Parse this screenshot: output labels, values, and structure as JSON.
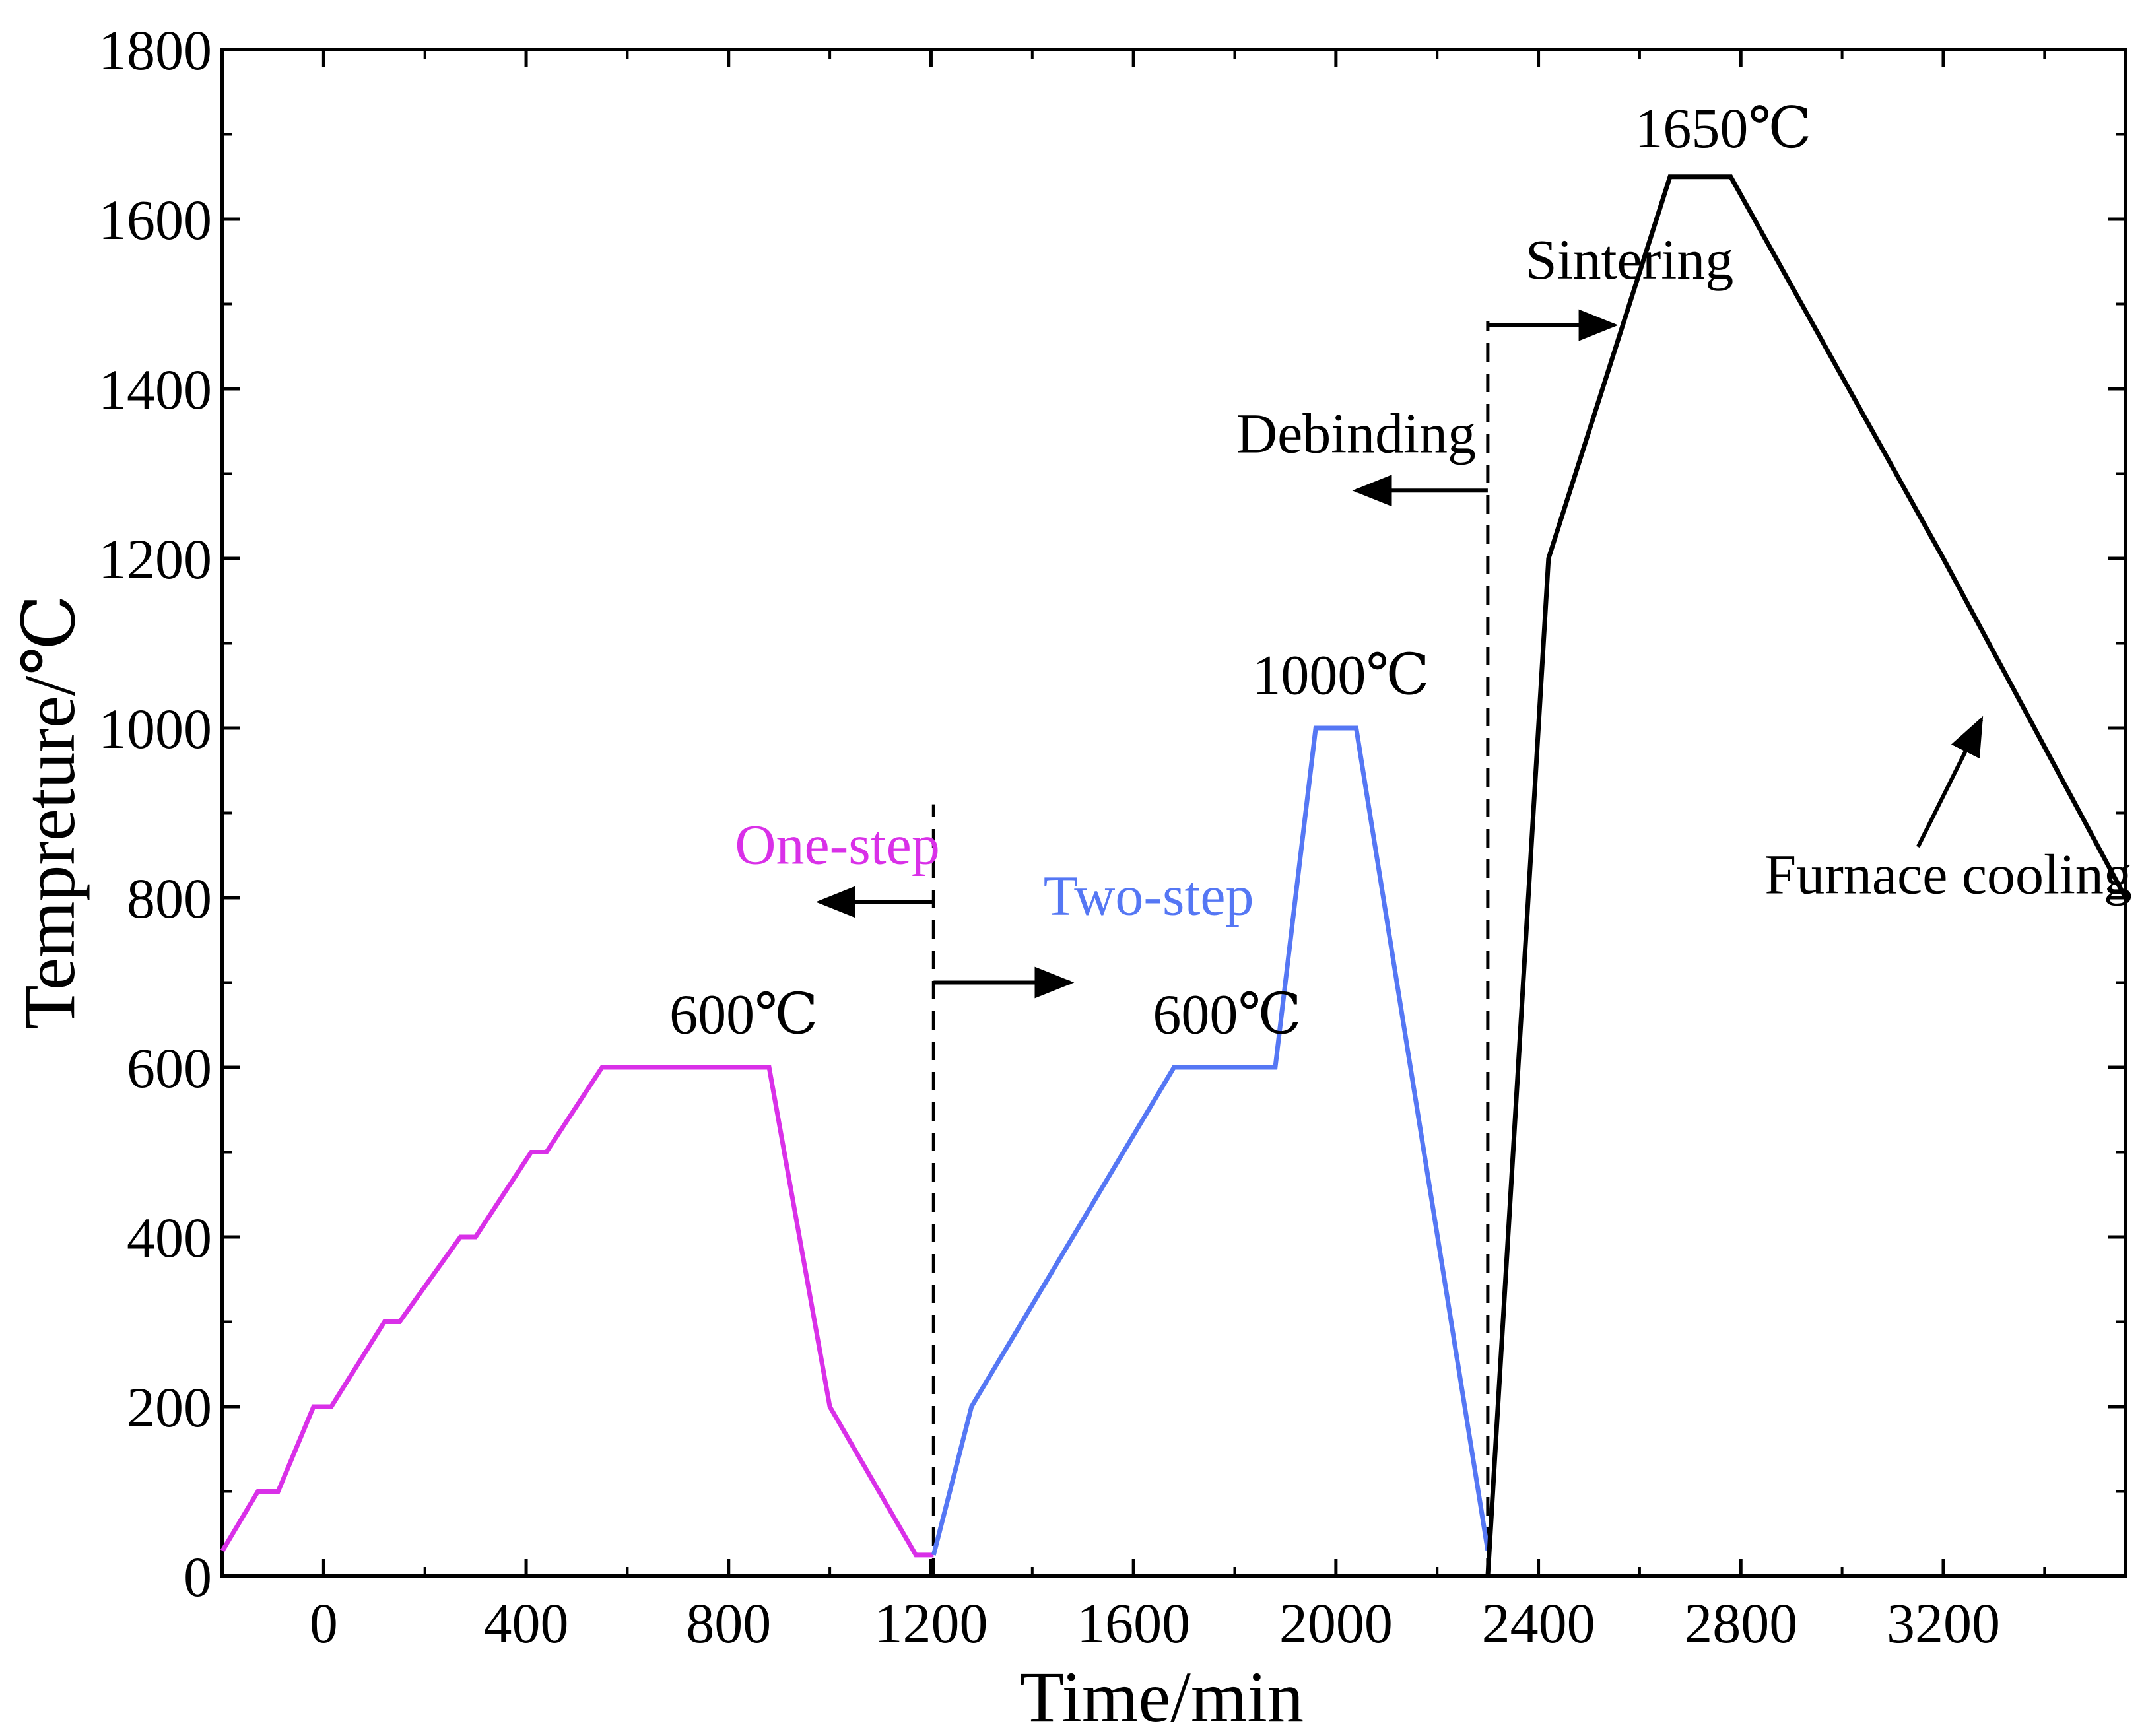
{
  "chart_data": {
    "type": "line",
    "title": "",
    "xlabel": "Time/min",
    "ylabel": "Tempreture/℃",
    "xlim": [
      -200,
      3560
    ],
    "ylim": [
      0,
      1800
    ],
    "x_ticks": [
      {
        "value": 0,
        "label": "0"
      },
      {
        "value": 400,
        "label": "400"
      },
      {
        "value": 800,
        "label": "800"
      },
      {
        "value": 1200,
        "label": "1200"
      },
      {
        "value": 1600,
        "label": "1600"
      },
      {
        "value": 2000,
        "label": "2000"
      },
      {
        "value": 2400,
        "label": "2400"
      },
      {
        "value": 2800,
        "label": "2800"
      },
      {
        "value": 3200,
        "label": "3200"
      }
    ],
    "y_ticks": [
      0,
      200,
      400,
      600,
      800,
      1000,
      1200,
      1400,
      1600,
      1800
    ],
    "grid": false,
    "series": [
      {
        "name": "One-step",
        "color": "#d930e8",
        "x": [
          -200,
          -130,
          -90,
          -20,
          15,
          120,
          150,
          270,
          300,
          410,
          440,
          550,
          580,
          710,
          880,
          1000,
          1170,
          1205
        ],
        "y": [
          30,
          100,
          100,
          200,
          200,
          300,
          300,
          400,
          400,
          500,
          500,
          600,
          600,
          600,
          600,
          200,
          25,
          25
        ]
      },
      {
        "name": "Two-step",
        "color": "#5577f4",
        "x": [
          1205,
          1280,
          1680,
          1880,
          1960,
          2000,
          2040,
          2300
        ],
        "y": [
          25,
          200,
          600,
          600,
          1000,
          1000,
          1000,
          30
        ]
      },
      {
        "name": "Sintering",
        "color": "#000000",
        "x": [
          2300,
          2420,
          2660,
          2780,
          3200,
          3560
        ],
        "y": [
          0,
          1200,
          1650,
          1650,
          1200,
          800
        ]
      }
    ],
    "annotations": [
      {
        "id": "one-step",
        "text": "One-step",
        "x": 1015,
        "y": 840,
        "color": "#d930e8"
      },
      {
        "id": "two-step",
        "text": "Two-step",
        "x": 1630,
        "y": 780,
        "color": "#5577f4"
      },
      {
        "id": "600c-1",
        "text": "600℃",
        "x": 830,
        "y": 640,
        "color": "#000000"
      },
      {
        "id": "600c-2",
        "text": "600℃",
        "x": 1785,
        "y": 640,
        "color": "#000000"
      },
      {
        "id": "1000c",
        "text": "1000℃",
        "x": 2010,
        "y": 1040,
        "color": "#000000"
      },
      {
        "id": "1650c",
        "text": "1650℃",
        "x": 2765,
        "y": 1685,
        "color": "#000000"
      },
      {
        "id": "sintering",
        "text": "Sintering",
        "x": 2580,
        "y": 1530,
        "color": "#000000"
      },
      {
        "id": "debinding",
        "text": "Debinding",
        "x": 2040,
        "y": 1325,
        "color": "#000000"
      },
      {
        "id": "furnace-cooling",
        "text": "Furnace cooling",
        "x": 3210,
        "y": 805,
        "color": "#000000"
      }
    ],
    "dividers": [
      {
        "id": "divider-1200",
        "x": 1205,
        "y_from": 0,
        "y_to": 910
      },
      {
        "id": "divider-2300",
        "x": 2300,
        "y_from": 0,
        "y_to": 1480
      }
    ],
    "arrows": [
      {
        "id": "arrow-one-step",
        "from": [
          1205,
          795
        ],
        "to": [
          980,
          795
        ]
      },
      {
        "id": "arrow-two-step",
        "from": [
          1205,
          700
        ],
        "to": [
          1475,
          700
        ]
      },
      {
        "id": "arrow-debinding",
        "from": [
          2300,
          1280
        ],
        "to": [
          2040,
          1280
        ]
      },
      {
        "id": "arrow-sintering",
        "from": [
          2300,
          1475
        ],
        "to": [
          2550,
          1475
        ]
      },
      {
        "id": "arrow-furnace-cooling",
        "from": [
          3150,
          860
        ],
        "to": [
          3275,
          1010
        ]
      }
    ]
  }
}
